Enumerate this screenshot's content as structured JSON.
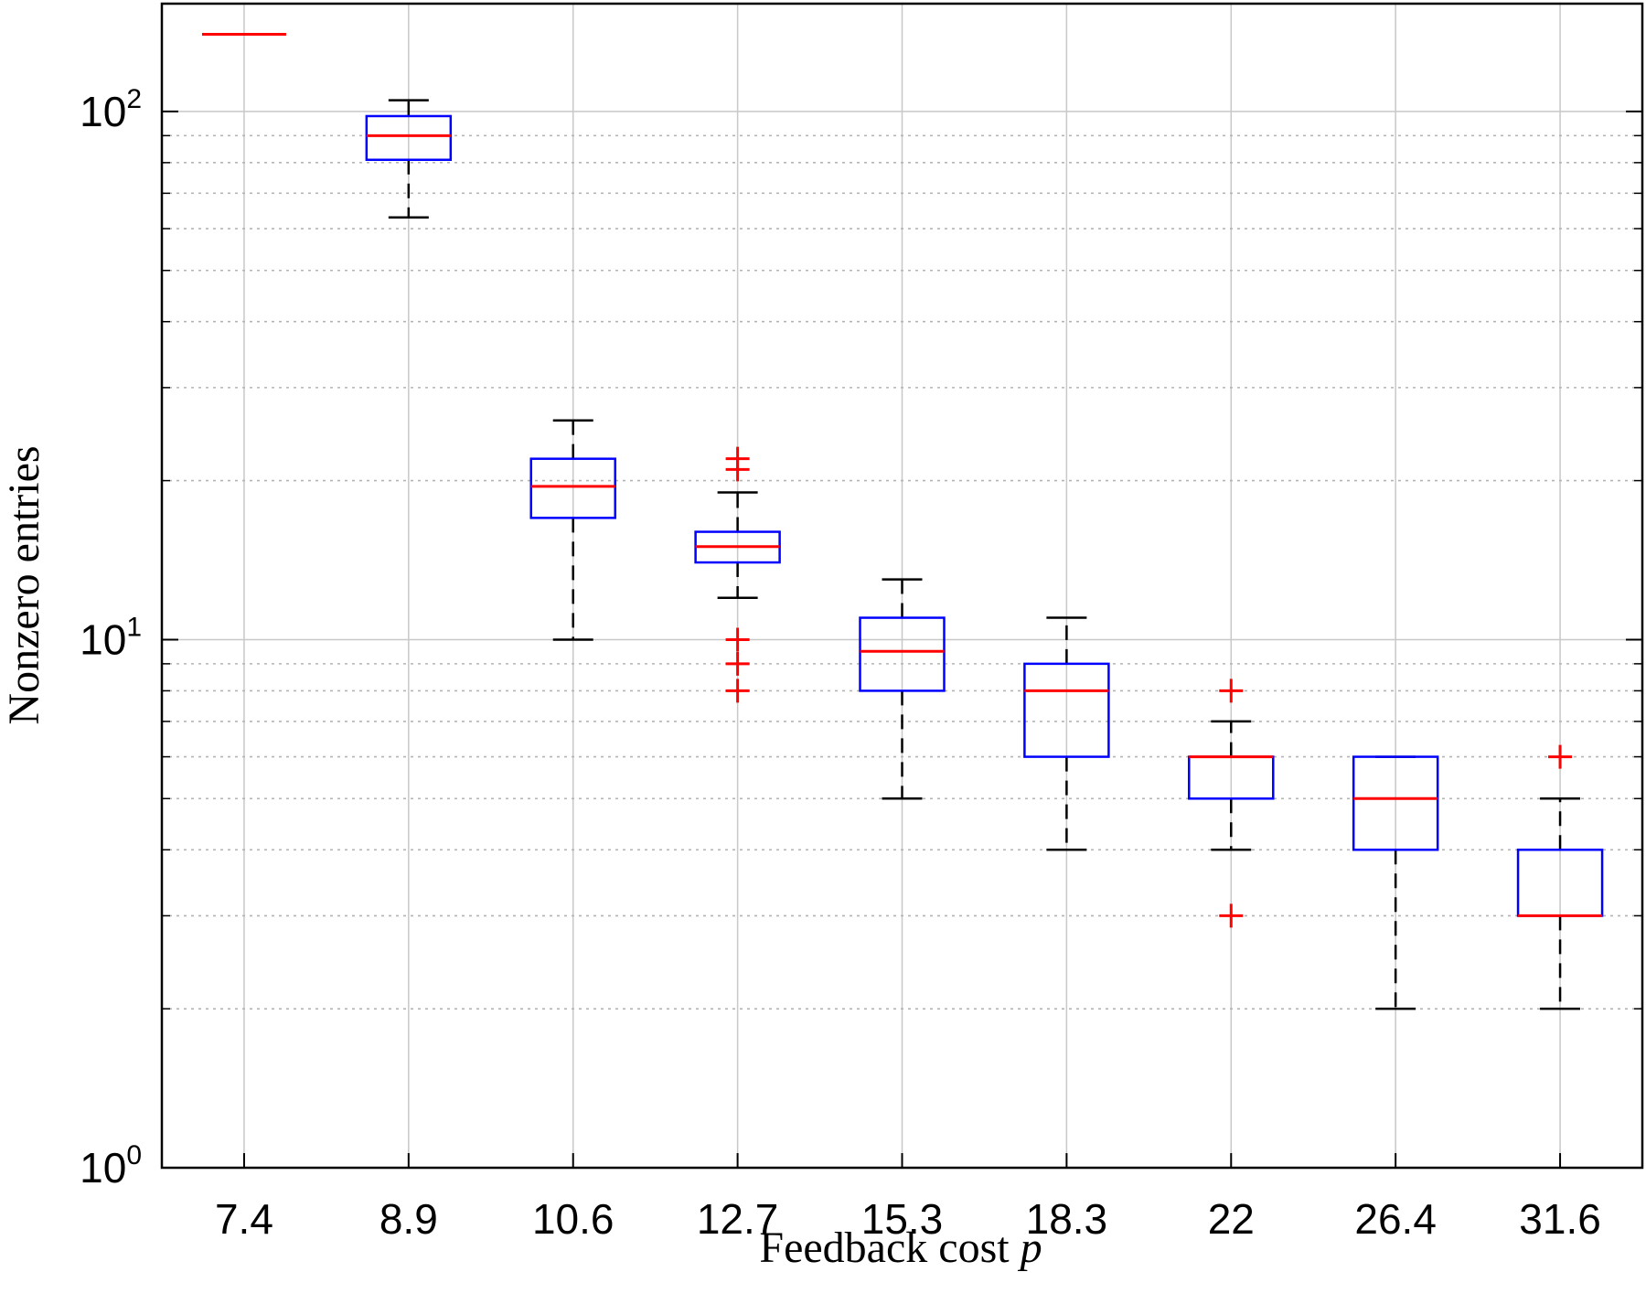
{
  "chart_data": {
    "type": "boxplot",
    "title": "",
    "xlabel": "Feedback cost",
    "xlabel_symbol": "p",
    "ylabel": "Nonzero entries",
    "yscale": "log",
    "ylim": [
      1,
      160
    ],
    "grid": true,
    "y_ticks": [
      {
        "base": "10",
        "exp": "0",
        "value": 1
      },
      {
        "base": "10",
        "exp": "1",
        "value": 10
      },
      {
        "base": "10",
        "exp": "2",
        "value": 100
      }
    ],
    "categories": [
      "7.4",
      "8.9",
      "10.6",
      "12.7",
      "15.3",
      "18.3",
      "22",
      "26.4",
      "31.6"
    ],
    "boxes": [
      {
        "whisker_low": 140,
        "q1": 140,
        "median": 140,
        "q3": 140,
        "whisker_high": 140,
        "outliers": []
      },
      {
        "whisker_low": 63,
        "q1": 81,
        "median": 90,
        "q3": 98,
        "whisker_high": 105,
        "outliers": []
      },
      {
        "whisker_low": 10,
        "q1": 17,
        "median": 19.5,
        "q3": 22,
        "whisker_high": 26,
        "outliers": []
      },
      {
        "whisker_low": 12,
        "q1": 14,
        "median": 15,
        "q3": 16,
        "whisker_high": 19,
        "outliers": [
          8,
          9,
          10,
          21,
          22
        ]
      },
      {
        "whisker_low": 5,
        "q1": 8,
        "median": 9.5,
        "q3": 11,
        "whisker_high": 13,
        "outliers": []
      },
      {
        "whisker_low": 4,
        "q1": 6,
        "median": 8,
        "q3": 9,
        "whisker_high": 11,
        "outliers": []
      },
      {
        "whisker_low": 4,
        "q1": 5,
        "median": 6,
        "q3": 6,
        "whisker_high": 7,
        "outliers": [
          3,
          8
        ]
      },
      {
        "whisker_low": 2,
        "q1": 4,
        "median": 5,
        "q3": 6,
        "whisker_high": 6,
        "outliers": []
      },
      {
        "whisker_low": 2,
        "q1": 3,
        "median": 3,
        "q3": 4,
        "whisker_high": 5,
        "outliers": [
          6
        ]
      }
    ],
    "colors": {
      "box": "#0000ff",
      "median": "#ff0000",
      "whisker": "#000000",
      "outlier": "#ff0000",
      "grid": "#c8c8c8"
    }
  }
}
